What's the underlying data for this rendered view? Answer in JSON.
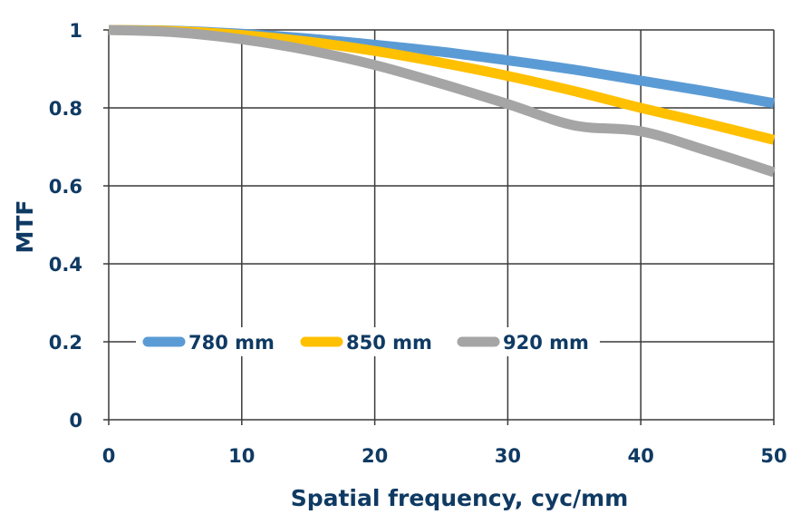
{
  "colors": {
    "text": "#0f3a63",
    "grid": "#3a3a3a",
    "background": "#ffffff"
  },
  "chart_data": {
    "type": "line",
    "title": "",
    "xlabel": "Spatial frequency, cyc/mm",
    "ylabel": "MTF",
    "xlim": [
      0,
      50
    ],
    "ylim": [
      0,
      1
    ],
    "x_ticks": [
      0,
      10,
      20,
      30,
      40,
      50
    ],
    "x_tick_labels": [
      "0",
      "10",
      "20",
      "30",
      "40",
      "50"
    ],
    "y_ticks": [
      0,
      0.2,
      0.4,
      0.6,
      0.8,
      1
    ],
    "y_tick_labels": [
      "0",
      "0.2",
      "0.4",
      "0.6",
      "0.8",
      "1"
    ],
    "grid": true,
    "legend_position": "lower-left inside plot",
    "x": [
      0,
      5,
      10,
      15,
      20,
      25,
      30,
      35,
      40,
      45,
      50
    ],
    "series": [
      {
        "name": "780 mm",
        "color": "#5b9bd5",
        "values": [
          1.0,
          0.998,
          0.99,
          0.978,
          0.962,
          0.944,
          0.922,
          0.898,
          0.87,
          0.842,
          0.812
        ]
      },
      {
        "name": "850 mm",
        "color": "#ffc000",
        "values": [
          1.0,
          0.997,
          0.987,
          0.97,
          0.946,
          0.916,
          0.882,
          0.843,
          0.8,
          0.76,
          0.718
        ]
      },
      {
        "name": "920 mm",
        "color": "#a5a5a5",
        "values": [
          1.0,
          0.994,
          0.976,
          0.948,
          0.91,
          0.862,
          0.81,
          0.755,
          0.74,
          0.69,
          0.635
        ]
      }
    ]
  }
}
